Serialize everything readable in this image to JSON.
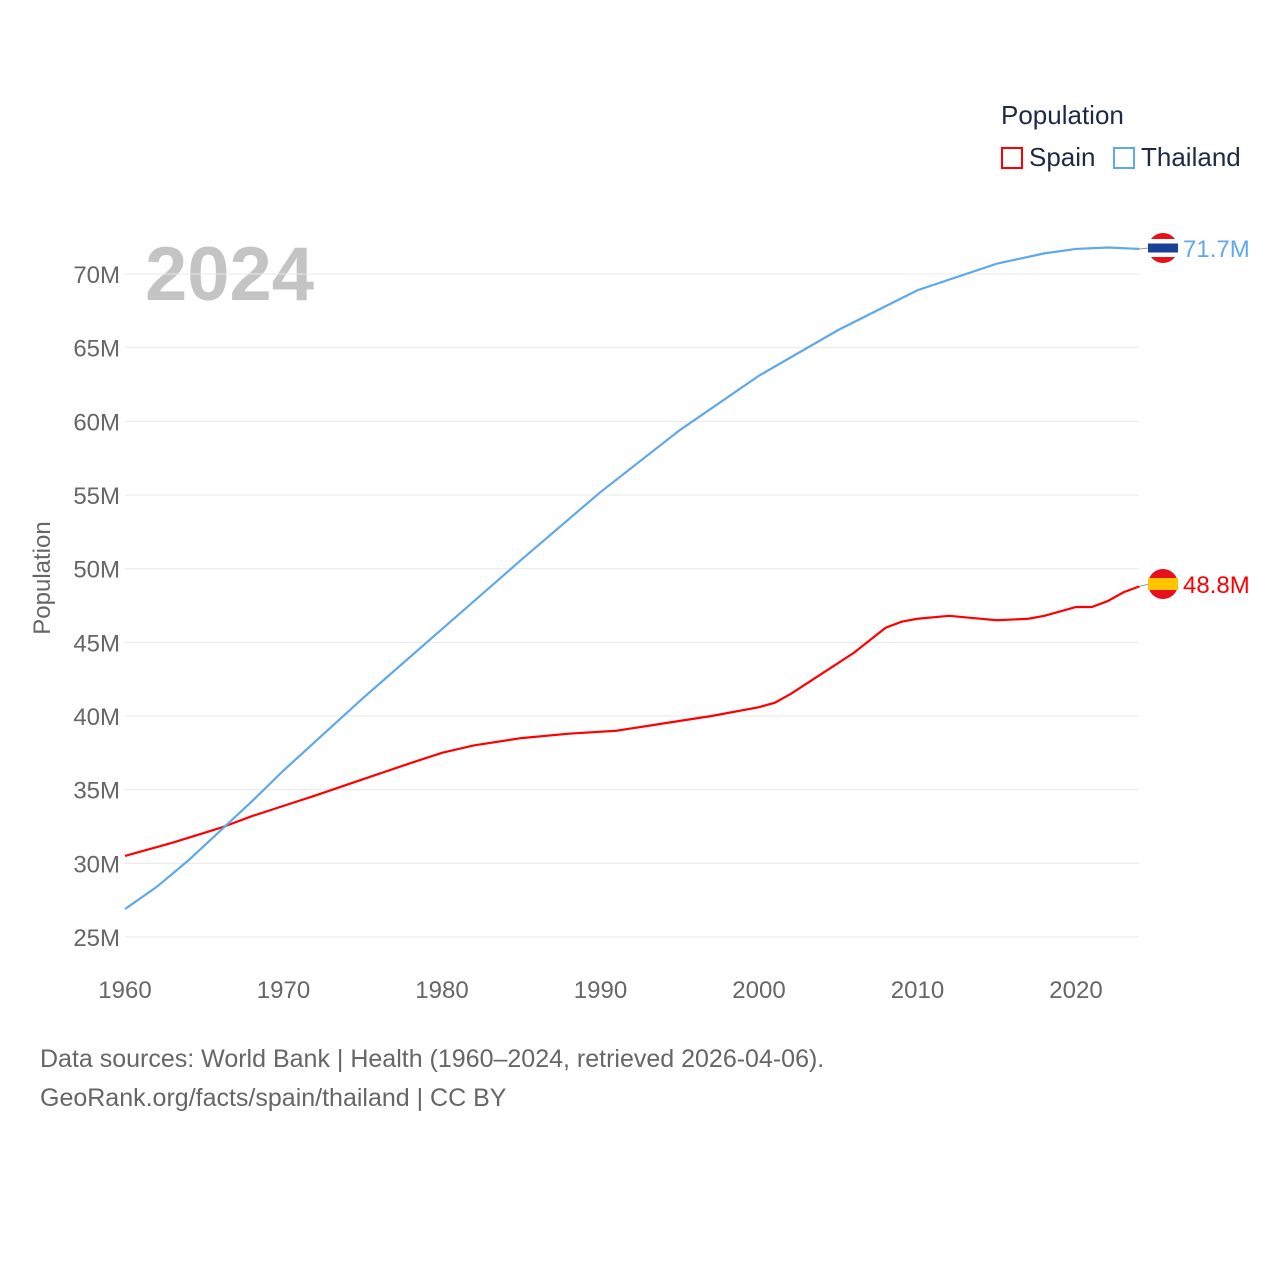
{
  "chart_data": {
    "type": "line",
    "title": "Population",
    "ylabel": "Population",
    "xlabel": "",
    "year_label": "2024",
    "xlim": [
      1960,
      2024
    ],
    "ylim": [
      25,
      72
    ],
    "x_ticks": [
      "1960",
      "1970",
      "1980",
      "1990",
      "2000",
      "2010",
      "2020"
    ],
    "y_ticks": [
      "25M",
      "30M",
      "35M",
      "40M",
      "45M",
      "50M",
      "55M",
      "60M",
      "65M",
      "70M"
    ],
    "grid": true,
    "legend_placement": "top-right",
    "series": [
      {
        "name": "Spain",
        "color": "#ff0000",
        "end_label": "48.8M",
        "x": [
          1960,
          1963,
          1966,
          1968,
          1970,
          1972,
          1975,
          1978,
          1980,
          1982,
          1985,
          1988,
          1991,
          1994,
          1997,
          2000,
          2001,
          2002,
          2004,
          2006,
          2008,
          2009,
          2010,
          2012,
          2013,
          2015,
          2017,
          2018,
          2019,
          2020,
          2021,
          2022,
          2023,
          2024
        ],
        "y": [
          30.5,
          31.4,
          32.4,
          33.2,
          33.9,
          34.6,
          35.7,
          36.8,
          37.5,
          38.0,
          38.5,
          38.8,
          39.0,
          39.5,
          40.0,
          40.6,
          40.9,
          41.5,
          42.9,
          44.3,
          46.0,
          46.4,
          46.6,
          46.8,
          46.7,
          46.5,
          46.6,
          46.8,
          47.1,
          47.4,
          47.4,
          47.8,
          48.4,
          48.8
        ]
      },
      {
        "name": "Thailand",
        "color": "#5fa8ea",
        "end_label": "71.7M",
        "x": [
          1960,
          1962,
          1964,
          1966,
          1968,
          1970,
          1975,
          1980,
          1985,
          1990,
          1995,
          2000,
          2005,
          2010,
          2015,
          2018,
          2020,
          2022,
          2024
        ],
        "y": [
          26.9,
          28.4,
          30.2,
          32.2,
          34.2,
          36.3,
          41.2,
          45.9,
          50.6,
          55.2,
          59.4,
          63.1,
          66.2,
          68.9,
          70.7,
          71.4,
          71.7,
          71.8,
          71.7
        ]
      }
    ]
  },
  "footer": {
    "line1": "Data sources: World Bank | Health (1960–2024, retrieved 2026-04-06).",
    "line2": "GeoRank.org/facts/spain/thailand | CC BY"
  }
}
